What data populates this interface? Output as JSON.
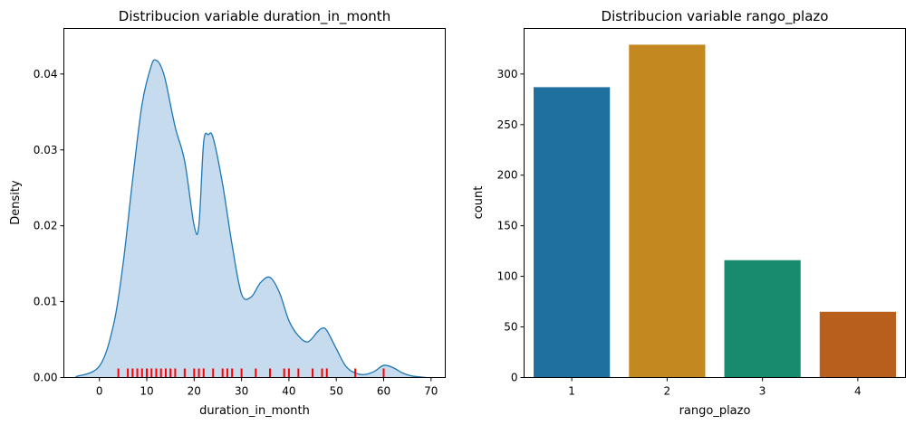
{
  "chart_data": [
    {
      "type": "area",
      "title": "Distribucion variable duration_in_month",
      "xlabel": "duration_in_month",
      "ylabel": "Density",
      "xlim": [
        -7.5,
        73
      ],
      "ylim": [
        0,
        0.046
      ],
      "xticks": [
        "0",
        "10",
        "20",
        "30",
        "40",
        "50",
        "60",
        "70"
      ],
      "yticks": [
        "0.00",
        "0.01",
        "0.02",
        "0.03",
        "0.04"
      ],
      "fill_color": "#c6dbed",
      "line_color": "#1f77b4",
      "rug_color": "#ff0000",
      "density": {
        "x": [
          -5,
          0,
          3,
          5,
          7,
          9,
          11,
          12,
          13,
          14,
          16,
          18,
          20,
          21,
          22,
          23,
          24,
          26,
          28,
          30,
          32,
          34,
          36,
          38,
          40,
          42,
          44,
          46,
          47,
          48,
          50,
          52,
          54,
          56,
          58,
          60,
          62,
          64,
          66,
          69
        ],
        "y": [
          0.0001,
          0.0015,
          0.007,
          0.015,
          0.026,
          0.036,
          0.0412,
          0.0418,
          0.041,
          0.039,
          0.033,
          0.0285,
          0.02,
          0.0201,
          0.031,
          0.032,
          0.0316,
          0.0255,
          0.0175,
          0.011,
          0.0106,
          0.0125,
          0.0132,
          0.0112,
          0.0075,
          0.0055,
          0.0047,
          0.006,
          0.0065,
          0.0062,
          0.0038,
          0.0015,
          0.0006,
          0.0004,
          0.0008,
          0.0016,
          0.0013,
          0.0006,
          0.0002,
          0.0
        ]
      },
      "rug": [
        4,
        6,
        7,
        8,
        9,
        10,
        11,
        12,
        13,
        14,
        15,
        16,
        18,
        20,
        21,
        22,
        24,
        26,
        27,
        28,
        30,
        33,
        36,
        39,
        40,
        42,
        45,
        47,
        48,
        54,
        60
      ]
    },
    {
      "type": "bar",
      "title": "Distribucion variable rango_plazo",
      "xlabel": "rango_plazo",
      "ylabel": "count",
      "categories": [
        "1",
        "2",
        "3",
        "4"
      ],
      "values": [
        287,
        329,
        116,
        65
      ],
      "colors": [
        "#1f6f9f",
        "#c48820",
        "#178b6b",
        "#b85f1d"
      ],
      "ylim": [
        0,
        345
      ],
      "yticks": [
        "0",
        "50",
        "100",
        "150",
        "200",
        "250",
        "300"
      ]
    }
  ]
}
